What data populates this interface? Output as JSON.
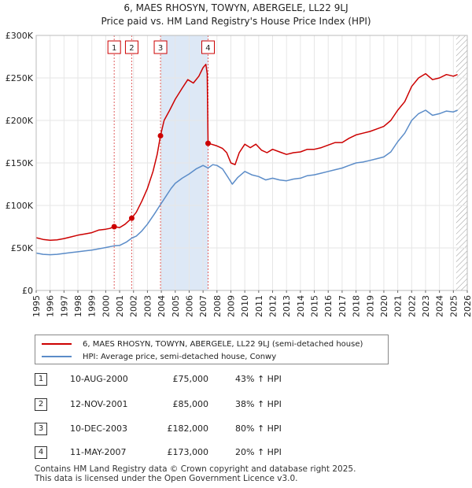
{
  "title_line1": "6, MAES RHOSYN, TOWYN, ABERGELE, LL22 9LJ",
  "title_line2": "Price paid vs. HM Land Registry's House Price Index (HPI)",
  "colors": {
    "property": "#cc0000",
    "hpi": "#5b8cc8",
    "grid": "#e6e6e6",
    "shade": "#dde8f6"
  },
  "legend": {
    "property_label": "6, MAES RHOSYN, TOWYN, ABERGELE, LL22 9LJ (semi-detached house)",
    "hpi_label": "HPI: Average price, semi-detached house, Conwy"
  },
  "transactions": [
    {
      "num": "1",
      "date": "10-AUG-2000",
      "price": "£75,000",
      "hpi": "43% ↑ HPI"
    },
    {
      "num": "2",
      "date": "12-NOV-2001",
      "price": "£85,000",
      "hpi": "38% ↑ HPI"
    },
    {
      "num": "3",
      "date": "10-DEC-2003",
      "price": "£182,000",
      "hpi": "80% ↑ HPI"
    },
    {
      "num": "4",
      "date": "11-MAY-2007",
      "price": "£173,000",
      "hpi": "20% ↑ HPI"
    }
  ],
  "footer": {
    "line1": "Contains HM Land Registry data © Crown copyright and database right 2025.",
    "line2": "This data is licensed under the Open Government Licence v3.0."
  },
  "chart_data": {
    "type": "line",
    "title": "6, MAES RHOSYN, TOWYN, ABERGELE, LL22 9LJ",
    "subtitle": "Price paid vs. HM Land Registry's House Price Index (HPI)",
    "xlim": [
      1995,
      2026
    ],
    "ylim": [
      0,
      300000
    ],
    "x_ticks": [
      "1995",
      "1996",
      "1997",
      "1998",
      "1999",
      "2000",
      "2001",
      "2002",
      "2003",
      "2004",
      "2005",
      "2006",
      "2007",
      "2008",
      "2009",
      "2010",
      "2011",
      "2012",
      "2013",
      "2014",
      "2015",
      "2016",
      "2017",
      "2018",
      "2019",
      "2020",
      "2021",
      "2022",
      "2023",
      "2024",
      "2025",
      "2026"
    ],
    "y_ticks": [
      {
        "value": 0,
        "label": "£0"
      },
      {
        "value": 50000,
        "label": "£50K"
      },
      {
        "value": 100000,
        "label": "£100K"
      },
      {
        "value": 150000,
        "label": "£150K"
      },
      {
        "value": 200000,
        "label": "£200K"
      },
      {
        "value": 250000,
        "label": "£250K"
      },
      {
        "value": 300000,
        "label": "£300K"
      }
    ],
    "grid": true,
    "shaded_period": [
      2003.94,
      2007.36
    ],
    "forecast_hatch_from": 2025.2,
    "sales": [
      {
        "label": "1",
        "x": 2000.61,
        "y": 75000
      },
      {
        "label": "2",
        "x": 2001.87,
        "y": 85000
      },
      {
        "label": "3",
        "x": 2003.94,
        "y": 182000
      },
      {
        "label": "4",
        "x": 2007.36,
        "y": 173000
      }
    ],
    "series": [
      {
        "name": "6, MAES RHOSYN, TOWYN, ABERGELE, LL22 9LJ (semi-detached house)",
        "color": "#cc0000",
        "points": [
          [
            1995.0,
            62000
          ],
          [
            1995.5,
            60000
          ],
          [
            1996.0,
            59000
          ],
          [
            1996.5,
            59500
          ],
          [
            1997.0,
            61000
          ],
          [
            1997.5,
            63000
          ],
          [
            1998.0,
            65000
          ],
          [
            1998.5,
            66500
          ],
          [
            1999.0,
            68000
          ],
          [
            1999.5,
            71000
          ],
          [
            2000.0,
            72000
          ],
          [
            2000.3,
            73000
          ],
          [
            2000.61,
            75000
          ],
          [
            2001.0,
            74000
          ],
          [
            2001.4,
            78000
          ],
          [
            2001.87,
            85000
          ],
          [
            2002.2,
            92000
          ],
          [
            2002.6,
            105000
          ],
          [
            2003.0,
            120000
          ],
          [
            2003.4,
            140000
          ],
          [
            2003.7,
            160000
          ],
          [
            2003.94,
            182000
          ],
          [
            2004.2,
            200000
          ],
          [
            2004.6,
            212000
          ],
          [
            2005.0,
            225000
          ],
          [
            2005.5,
            238000
          ],
          [
            2005.9,
            248000
          ],
          [
            2006.3,
            244000
          ],
          [
            2006.7,
            252000
          ],
          [
            2007.0,
            262000
          ],
          [
            2007.2,
            266000
          ],
          [
            2007.3,
            255000
          ],
          [
            2007.36,
            173000
          ],
          [
            2007.6,
            172000
          ],
          [
            2008.0,
            170000
          ],
          [
            2008.4,
            167000
          ],
          [
            2008.7,
            162000
          ],
          [
            2009.0,
            150000
          ],
          [
            2009.3,
            148000
          ],
          [
            2009.6,
            162000
          ],
          [
            2010.0,
            172000
          ],
          [
            2010.4,
            168000
          ],
          [
            2010.8,
            172000
          ],
          [
            2011.2,
            165000
          ],
          [
            2011.6,
            162000
          ],
          [
            2012.0,
            166000
          ],
          [
            2012.5,
            163000
          ],
          [
            2013.0,
            160000
          ],
          [
            2013.5,
            162000
          ],
          [
            2014.0,
            163000
          ],
          [
            2014.5,
            166000
          ],
          [
            2015.0,
            166000
          ],
          [
            2015.5,
            168000
          ],
          [
            2016.0,
            171000
          ],
          [
            2016.5,
            174000
          ],
          [
            2017.0,
            174000
          ],
          [
            2017.5,
            179000
          ],
          [
            2018.0,
            183000
          ],
          [
            2018.5,
            185000
          ],
          [
            2019.0,
            187000
          ],
          [
            2019.5,
            190000
          ],
          [
            2020.0,
            193000
          ],
          [
            2020.5,
            200000
          ],
          [
            2021.0,
            212000
          ],
          [
            2021.5,
            222000
          ],
          [
            2022.0,
            240000
          ],
          [
            2022.5,
            250000
          ],
          [
            2023.0,
            255000
          ],
          [
            2023.5,
            248000
          ],
          [
            2024.0,
            250000
          ],
          [
            2024.5,
            254000
          ],
          [
            2025.0,
            252000
          ],
          [
            2025.3,
            254000
          ]
        ]
      },
      {
        "name": "HPI: Average price, semi-detached house, Conwy",
        "color": "#5b8cc8",
        "points": [
          [
            1995.0,
            44000
          ],
          [
            1995.5,
            42500
          ],
          [
            1996.0,
            42000
          ],
          [
            1996.5,
            42500
          ],
          [
            1997.0,
            43500
          ],
          [
            1997.5,
            44500
          ],
          [
            1998.0,
            45500
          ],
          [
            1998.5,
            46500
          ],
          [
            1999.0,
            47500
          ],
          [
            1999.5,
            49000
          ],
          [
            2000.0,
            50500
          ],
          [
            2000.61,
            52500
          ],
          [
            2001.0,
            53000
          ],
          [
            2001.5,
            57000
          ],
          [
            2001.87,
            61500
          ],
          [
            2002.2,
            64000
          ],
          [
            2002.6,
            70000
          ],
          [
            2003.0,
            78000
          ],
          [
            2003.5,
            90000
          ],
          [
            2003.94,
            101000
          ],
          [
            2004.3,
            110000
          ],
          [
            2004.7,
            120000
          ],
          [
            2005.0,
            126000
          ],
          [
            2005.5,
            132000
          ],
          [
            2006.0,
            137000
          ],
          [
            2006.5,
            143000
          ],
          [
            2007.0,
            147000
          ],
          [
            2007.36,
            144000
          ],
          [
            2007.7,
            148000
          ],
          [
            2008.0,
            147000
          ],
          [
            2008.4,
            143000
          ],
          [
            2008.8,
            133000
          ],
          [
            2009.1,
            125000
          ],
          [
            2009.5,
            133000
          ],
          [
            2010.0,
            140000
          ],
          [
            2010.5,
            136000
          ],
          [
            2011.0,
            134000
          ],
          [
            2011.5,
            130000
          ],
          [
            2012.0,
            132000
          ],
          [
            2012.5,
            130000
          ],
          [
            2013.0,
            129000
          ],
          [
            2013.5,
            131000
          ],
          [
            2014.0,
            132000
          ],
          [
            2014.5,
            135000
          ],
          [
            2015.0,
            136000
          ],
          [
            2015.5,
            138000
          ],
          [
            2016.0,
            140000
          ],
          [
            2016.5,
            142000
          ],
          [
            2017.0,
            144000
          ],
          [
            2017.5,
            147000
          ],
          [
            2018.0,
            150000
          ],
          [
            2018.5,
            151000
          ],
          [
            2019.0,
            153000
          ],
          [
            2019.5,
            155000
          ],
          [
            2020.0,
            157000
          ],
          [
            2020.5,
            163000
          ],
          [
            2021.0,
            175000
          ],
          [
            2021.5,
            185000
          ],
          [
            2022.0,
            200000
          ],
          [
            2022.5,
            208000
          ],
          [
            2023.0,
            212000
          ],
          [
            2023.5,
            206000
          ],
          [
            2024.0,
            208000
          ],
          [
            2024.5,
            211000
          ],
          [
            2025.0,
            210000
          ],
          [
            2025.3,
            212000
          ]
        ]
      }
    ]
  }
}
